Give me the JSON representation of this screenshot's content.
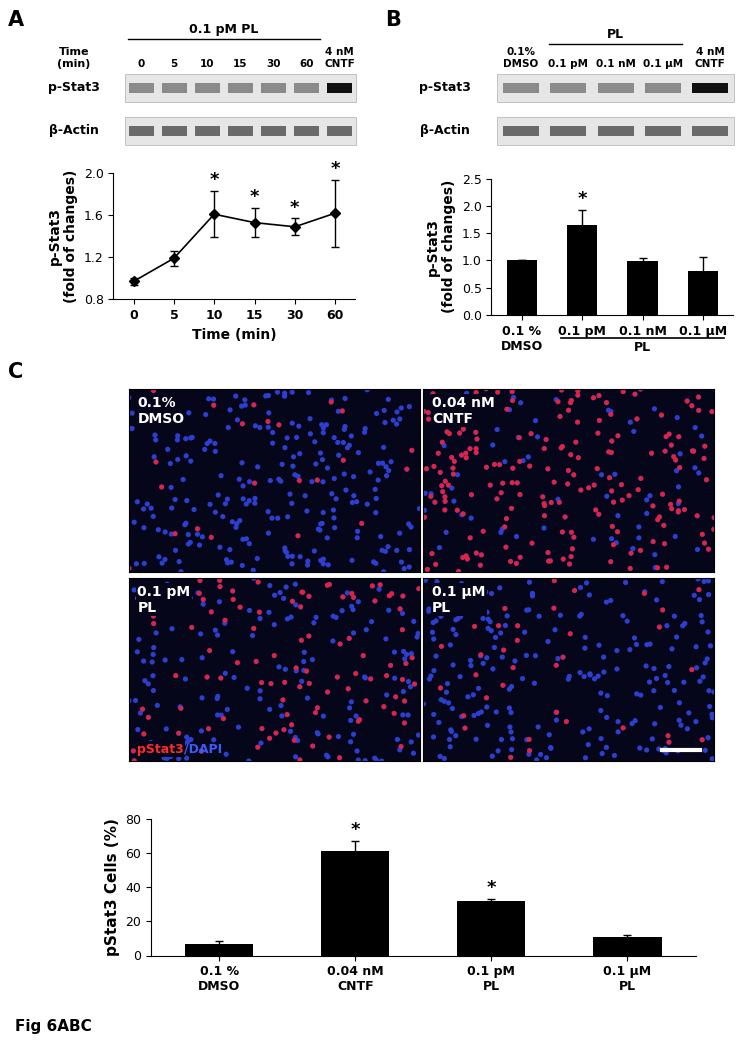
{
  "chart_data": [
    {
      "type": "line",
      "categories": [
        "0",
        "5",
        "10",
        "15",
        "30",
        "60"
      ],
      "values": [
        0.97,
        1.19,
        1.61,
        1.53,
        1.49,
        1.62
      ],
      "errors": [
        0.03,
        0.07,
        0.22,
        0.14,
        0.08,
        0.32
      ],
      "xlabel": "Time (min)",
      "ylabel": "p-Stat3\n(fold of changes)",
      "ylim": [
        0.8,
        2.0
      ],
      "yticks": [
        0.8,
        1.2,
        1.6,
        2.0
      ],
      "color": "#000000",
      "marker": "diamond",
      "significance": [
        false,
        false,
        true,
        true,
        true,
        true
      ],
      "significance_mark": "*"
    },
    {
      "type": "bar",
      "categories": [
        "0.1 %\nDMSO",
        "0.1 pM",
        "0.1 nM",
        "0.1 μM"
      ],
      "values": [
        1.0,
        1.65,
        0.98,
        0.8
      ],
      "errors": [
        0.0,
        0.27,
        0.06,
        0.26
      ],
      "group": {
        "label": "PL",
        "categories": [
          "0.1 pM",
          "0.1 nM",
          "0.1 μM"
        ]
      },
      "ylabel": "p-Stat3\n(fold of changes)",
      "ylim": [
        0.0,
        2.5
      ],
      "yticks": [
        0.0,
        0.5,
        1.0,
        1.5,
        2.0,
        2.5
      ],
      "color": "#000000",
      "significance": [
        false,
        true,
        false,
        false
      ],
      "significance_mark": "*"
    },
    {
      "type": "bar",
      "categories": [
        "0.1 %\nDMSO",
        "0.04 nM\nCNTF",
        "0.1 pM\nPL",
        "0.1 μM\nPL"
      ],
      "values": [
        7.0,
        61.5,
        32.0,
        11.0
      ],
      "errors": [
        1.5,
        5.5,
        1.0,
        0.8
      ],
      "ylabel": "pStat3 Cells (%)",
      "ylim": [
        0,
        80
      ],
      "yticks": [
        0,
        20,
        40,
        60,
        80
      ],
      "color": "#000000",
      "significance": [
        false,
        true,
        true,
        false
      ],
      "significance_mark": "*"
    }
  ],
  "figure": {
    "panel_letters": [
      "A",
      "B",
      "C"
    ],
    "caption": "Fig 6ABC"
  },
  "blots": [
    {
      "header": "0.1 pM PL",
      "lane_title": "Time\n(min)",
      "lanes": [
        "0",
        "5",
        "10",
        "15",
        "30",
        "60",
        "4 nM\nCNTF"
      ],
      "rows": [
        "p-Stat3",
        "β-Actin"
      ]
    },
    {
      "lanes": [
        "0.1%\nDMSO",
        "0.1 pM",
        "0.1 nM",
        "0.1 μM",
        "4 nM\nCNTF"
      ],
      "group": {
        "label": "PL",
        "lanes": [
          "0.1 pM",
          "0.1 nM",
          "0.1 μM"
        ]
      },
      "rows": [
        "p-Stat3",
        "β-Actin"
      ]
    }
  ],
  "micrographs": {
    "panels": [
      "0.1%\nDMSO",
      "0.04 nM\nCNTF",
      "0.1 pM\nPL",
      "0.1 μM\nPL"
    ],
    "stain_labels": [
      {
        "text": "pStat3",
        "color": "#ff2a2a"
      },
      {
        "text": "/DAPI",
        "color": "#3a5cff"
      }
    ]
  }
}
